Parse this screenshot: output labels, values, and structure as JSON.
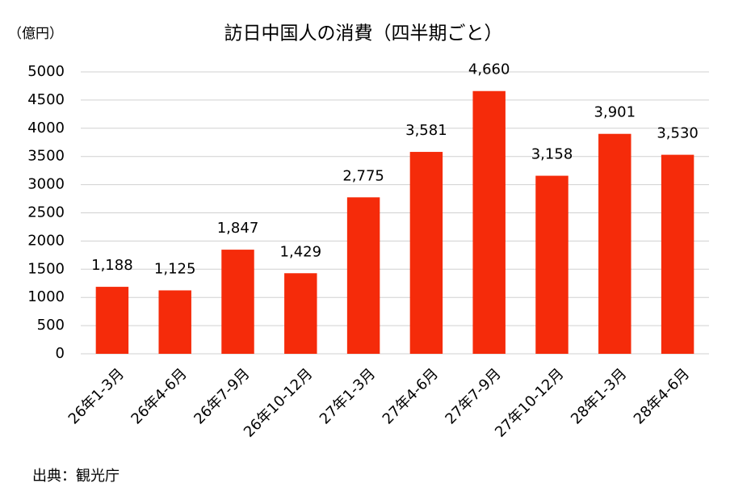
{
  "chart_data": {
    "type": "bar",
    "title": "訪日中国人の消費（四半期ごと）",
    "unit_label": "（億円）",
    "source": "出典：観光庁",
    "categories": [
      "26年1-3月",
      "26年4-6月",
      "26年7-9月",
      "26年10-12月",
      "27年1-3月",
      "27年4-6月",
      "27年7-9月",
      "27年10-12月",
      "28年1-3月",
      "28年4-6月"
    ],
    "values": [
      1188,
      1125,
      1847,
      1429,
      2775,
      3581,
      4660,
      3158,
      3901,
      3530
    ],
    "value_labels": [
      "1,188",
      "1,125",
      "1,847",
      "1,429",
      "2,775",
      "3,581",
      "4,660",
      "3,158",
      "3,901",
      "3,530"
    ],
    "color": "#f52b0a",
    "ylim": [
      0,
      5000
    ],
    "yticks": [
      0,
      500,
      1000,
      1500,
      2000,
      2500,
      3000,
      3500,
      4000,
      4500,
      5000
    ],
    "grid": true
  }
}
